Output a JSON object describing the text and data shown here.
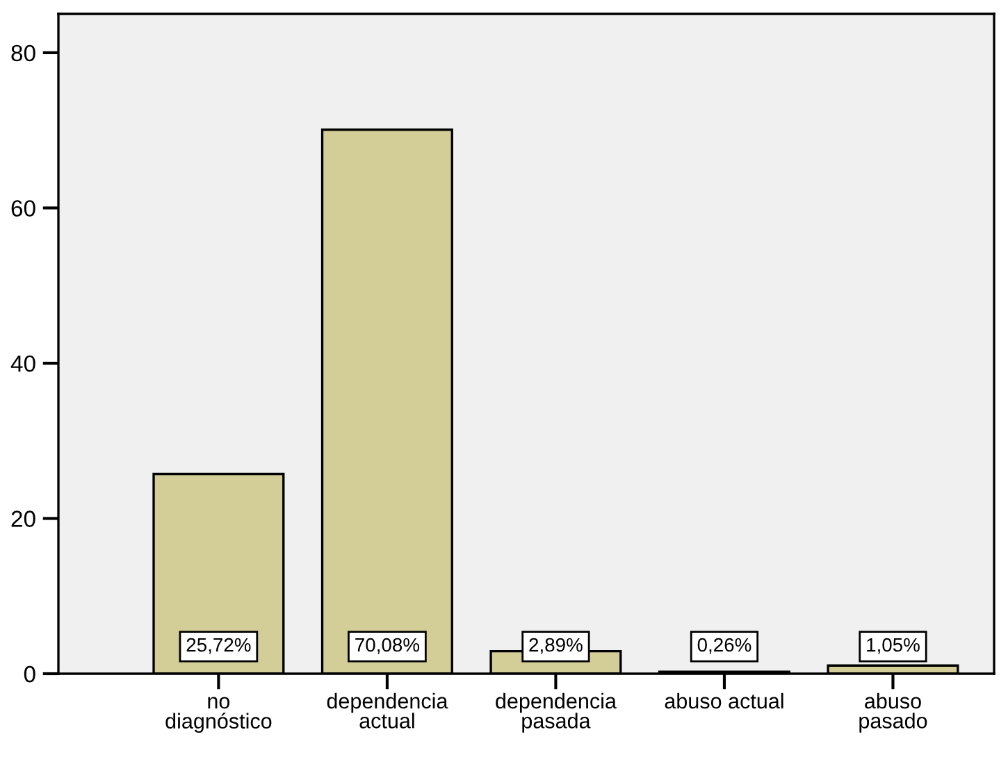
{
  "chart_data": {
    "type": "bar",
    "categories": [
      "no\ndiagnóstico",
      "dependencia\nactual",
      "dependencia\npasada",
      "abuso actual",
      "abuso\npasado"
    ],
    "values": [
      25.72,
      70.08,
      2.89,
      0.26,
      1.05
    ],
    "value_labels": [
      "25,72%",
      "70,08%",
      "2,89%",
      "0,26%",
      "1,05%"
    ],
    "color": "#d3ce97",
    "ylim": [
      0,
      85
    ],
    "yticks": [
      0,
      20,
      40,
      60,
      80
    ],
    "grid": false,
    "legend": false
  }
}
